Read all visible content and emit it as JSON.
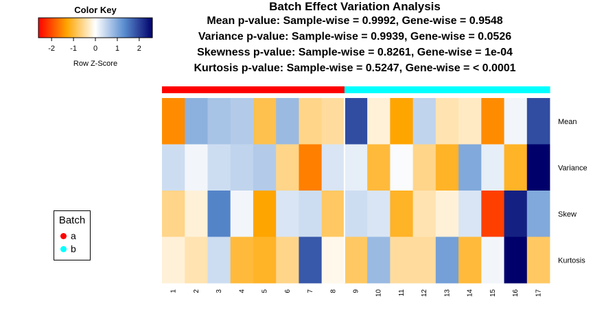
{
  "title_lines": [
    "Batch Effect Variation Analysis",
    "Mean p-value: Sample-wise = 0.9992, Gene-wise = 0.9548",
    "Variance p-value: Sample-wise = 0.9939, Gene-wise = 0.0526",
    "Skewness p-value: Sample-wise = 0.8261, Gene-wise = 1e-04",
    "Kurtosis p-value: Sample-wise = 0.5247, Gene-wise = < 0.0001"
  ],
  "color_key": {
    "title": "Color Key",
    "xlabel": "Row Z-Score",
    "ticks": [
      "-2",
      "-1",
      "0",
      "1",
      "2"
    ],
    "range": [
      -2.6,
      2.6
    ],
    "colors": [
      "#ff0000",
      "#ffa500",
      "#ffffff",
      "#5b8fd0",
      "#00006b"
    ]
  },
  "legend": {
    "title": "Batch",
    "items": [
      {
        "label": "a",
        "color": "#ff0000"
      },
      {
        "label": "b",
        "color": "#00ffff"
      }
    ]
  },
  "chart_data": {
    "type": "heatmap",
    "columns": [
      "1",
      "2",
      "3",
      "4",
      "5",
      "6",
      "7",
      "8",
      "9",
      "10",
      "11",
      "12",
      "13",
      "14",
      "15",
      "16",
      "17"
    ],
    "rows": [
      "Mean",
      "Variance",
      "Skew",
      "Kurtosis"
    ],
    "column_batches": [
      "a",
      "a",
      "a",
      "a",
      "a",
      "a",
      "a",
      "a",
      "b",
      "b",
      "b",
      "b",
      "b",
      "b",
      "b",
      "b",
      "b"
    ],
    "batch_colors": {
      "a": "#ff0000",
      "b": "#00ffff"
    },
    "values": [
      [
        -1.5,
        0.9,
        0.7,
        0.6,
        -0.9,
        0.8,
        -0.6,
        -0.5,
        1.9,
        -0.2,
        -1.3,
        0.5,
        -0.4,
        -0.3,
        -1.5,
        0.1,
        1.9
      ],
      [
        0.4,
        0.1,
        0.4,
        0.5,
        0.6,
        -0.6,
        -1.6,
        0.3,
        0.2,
        -1.0,
        0.05,
        -0.6,
        -1.1,
        1.0,
        0.2,
        -1.1,
        2.6
      ],
      [
        -0.6,
        -0.2,
        1.4,
        0.1,
        -1.3,
        0.3,
        0.4,
        -0.8,
        0.4,
        0.3,
        -1.1,
        -0.4,
        -0.2,
        0.3,
        -2.1,
        2.3,
        1.0
      ],
      [
        -0.2,
        -0.4,
        0.4,
        -1.0,
        -1.1,
        -0.6,
        1.8,
        -0.1,
        -0.8,
        0.8,
        -0.5,
        -0.5,
        1.1,
        -1.0,
        0.1,
        2.6,
        -0.8
      ]
    ]
  }
}
